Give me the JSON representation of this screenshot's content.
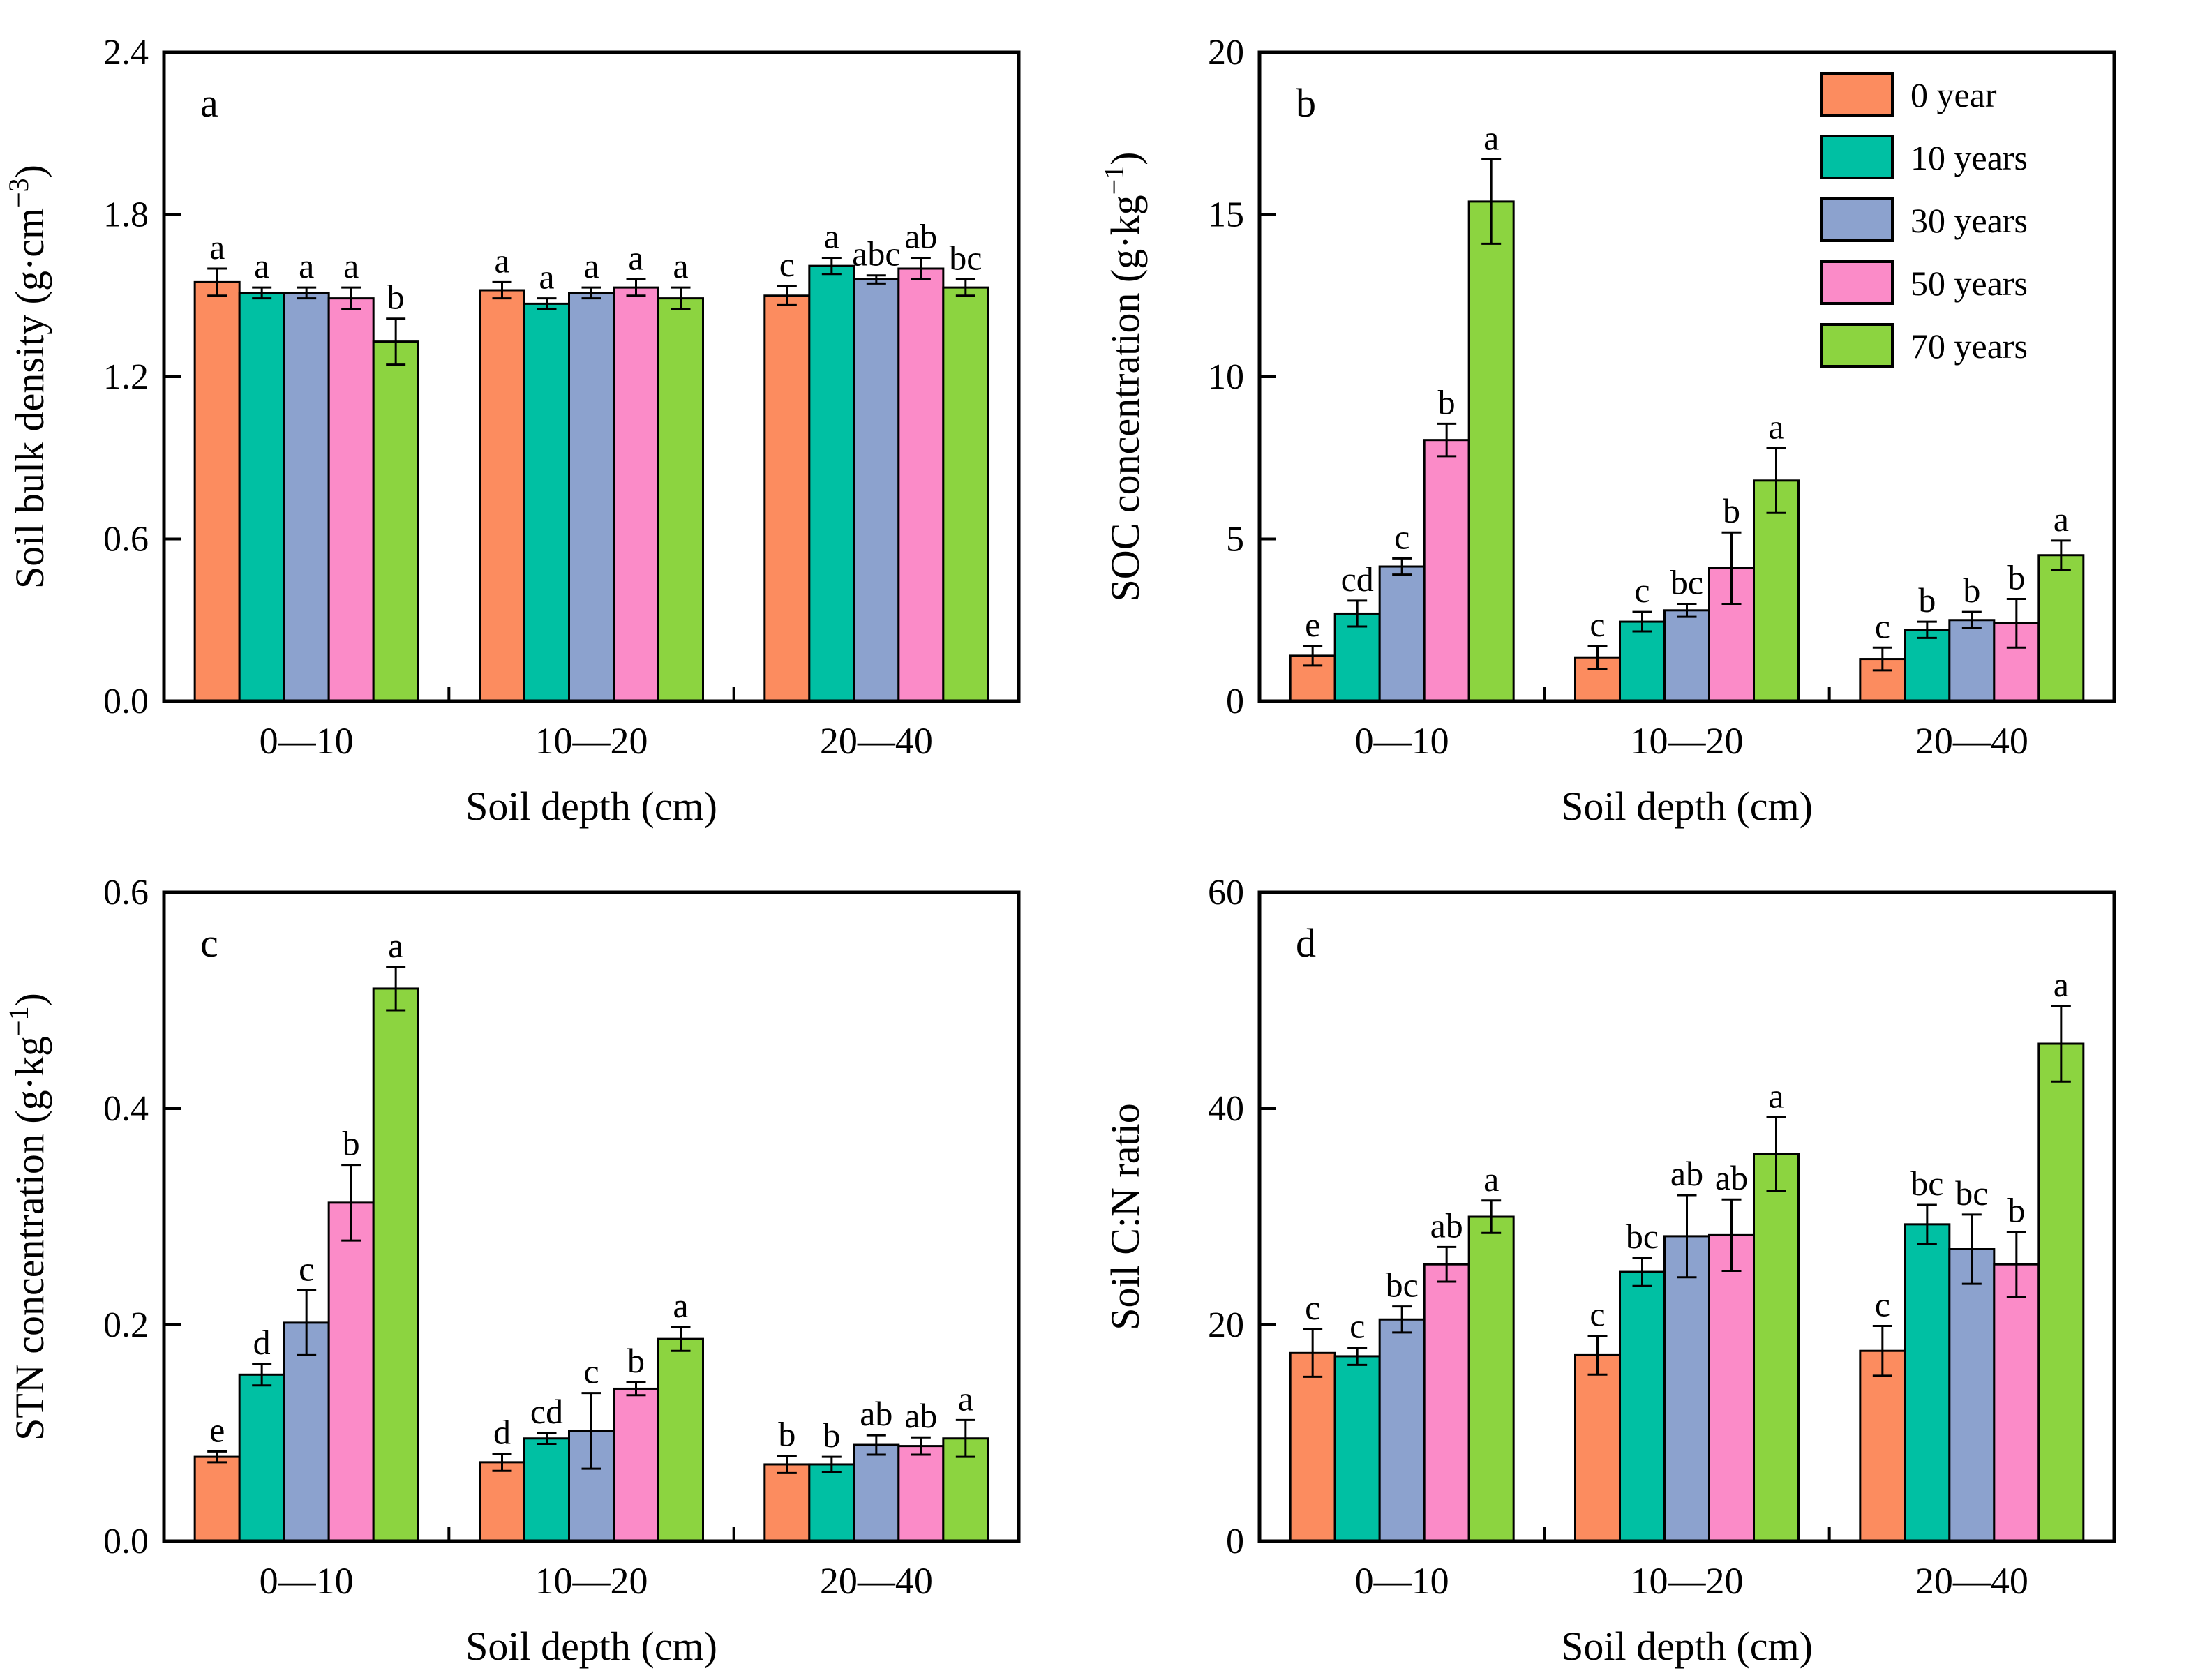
{
  "figure": {
    "background": "#ffffff",
    "frame_color": "#000000",
    "series_colors": [
      "#FC8C5F",
      "#00C0A3",
      "#8CA2CE",
      "#FB8BC8",
      "#8CD440"
    ]
  },
  "legend": {
    "position": "top-right-panel-b",
    "labels": [
      "0 year",
      "10  years",
      "30  years",
      "50  years",
      "70  years"
    ]
  },
  "chart_data": [
    {
      "id": "a",
      "type": "bar",
      "panel_letter": "a",
      "xlabel": "Soil depth (cm)",
      "ylabel_segments": [
        {
          "t": "Soil bulk density (g·cm"
        },
        {
          "t": "−3",
          "sup": true
        },
        {
          "t": ")"
        }
      ],
      "categories": [
        "0—10",
        "10—20",
        "20—40"
      ],
      "ylim": [
        0,
        2.4
      ],
      "yticks": [
        0,
        0.6,
        1.2,
        1.8,
        2.4
      ],
      "ytick_labels": [
        "0.0",
        "0.6",
        "1.2",
        "1.8",
        "2.4"
      ],
      "grid": false,
      "show_legend": false,
      "series": [
        {
          "name": "0 year",
          "values": [
            1.55,
            1.52,
            1.5
          ],
          "errors": [
            0.05,
            0.03,
            0.035
          ],
          "letters": [
            "a",
            "a",
            "c"
          ]
        },
        {
          "name": "10 years",
          "values": [
            1.51,
            1.47,
            1.61
          ],
          "errors": [
            0.02,
            0.02,
            0.03
          ],
          "letters": [
            "a",
            "a",
            "a"
          ]
        },
        {
          "name": "30 years",
          "values": [
            1.51,
            1.51,
            1.56
          ],
          "errors": [
            0.02,
            0.02,
            0.015
          ],
          "letters": [
            "a",
            "a",
            "abc"
          ]
        },
        {
          "name": "50 years",
          "values": [
            1.49,
            1.53,
            1.6
          ],
          "errors": [
            0.04,
            0.03,
            0.04
          ],
          "letters": [
            "a",
            "a",
            "ab"
          ]
        },
        {
          "name": "70 years",
          "values": [
            1.33,
            1.49,
            1.53
          ],
          "errors": [
            0.085,
            0.04,
            0.03
          ],
          "letters": [
            "b",
            "a",
            "bc"
          ]
        }
      ]
    },
    {
      "id": "b",
      "type": "bar",
      "panel_letter": "b",
      "xlabel": "Soil depth (cm)",
      "ylabel_segments": [
        {
          "t": "SOC concentration (g·kg"
        },
        {
          "t": "−1",
          "sup": true
        },
        {
          "t": ")"
        }
      ],
      "categories": [
        "0—10",
        "10—20",
        "20—40"
      ],
      "ylim": [
        0,
        20
      ],
      "yticks": [
        0,
        5,
        10,
        15,
        20
      ],
      "ytick_labels": [
        "0",
        "5",
        "10",
        "15",
        "20"
      ],
      "grid": false,
      "show_legend": true,
      "series": [
        {
          "name": "0 year",
          "values": [
            1.4,
            1.35,
            1.3
          ],
          "errors": [
            0.3,
            0.35,
            0.35
          ],
          "letters": [
            "e",
            "c",
            "c"
          ]
        },
        {
          "name": "10 years",
          "values": [
            2.7,
            2.45,
            2.2
          ],
          "errors": [
            0.4,
            0.3,
            0.25
          ],
          "letters": [
            "cd",
            "c",
            "b"
          ]
        },
        {
          "name": "30 years",
          "values": [
            4.15,
            2.8,
            2.5
          ],
          "errors": [
            0.25,
            0.2,
            0.25
          ],
          "letters": [
            "c",
            "bc",
            "b"
          ]
        },
        {
          "name": "50 years",
          "values": [
            8.05,
            4.1,
            2.4
          ],
          "errors": [
            0.5,
            1.1,
            0.75
          ],
          "letters": [
            "b",
            "b",
            "b"
          ]
        },
        {
          "name": "70 years",
          "values": [
            15.4,
            6.8,
            4.5
          ],
          "errors": [
            1.3,
            1.0,
            0.45
          ],
          "letters": [
            "a",
            "a",
            "a"
          ]
        }
      ]
    },
    {
      "id": "c",
      "type": "bar",
      "panel_letter": "c",
      "xlabel": "Soil depth (cm)",
      "ylabel_segments": [
        {
          "t": "STN concentration (g·kg"
        },
        {
          "t": "−1",
          "sup": true
        },
        {
          "t": ")"
        }
      ],
      "categories": [
        "0—10",
        "10—20",
        "20—40"
      ],
      "ylim": [
        0,
        0.6
      ],
      "yticks": [
        0,
        0.2,
        0.4,
        0.6
      ],
      "ytick_labels": [
        "0.0",
        "0.2",
        "0.4",
        "0.6"
      ],
      "grid": false,
      "show_legend": false,
      "series": [
        {
          "name": "0 year",
          "values": [
            0.078,
            0.073,
            0.071
          ],
          "errors": [
            0.005,
            0.008,
            0.008
          ],
          "letters": [
            "e",
            "d",
            "b"
          ]
        },
        {
          "name": "10 years",
          "values": [
            0.154,
            0.095,
            0.071
          ],
          "errors": [
            0.01,
            0.005,
            0.007
          ],
          "letters": [
            "d",
            "cd",
            "b"
          ]
        },
        {
          "name": "30 years",
          "values": [
            0.202,
            0.102,
            0.089
          ],
          "errors": [
            0.03,
            0.035,
            0.009
          ],
          "letters": [
            "c",
            "c",
            "ab"
          ]
        },
        {
          "name": "50 years",
          "values": [
            0.313,
            0.141,
            0.088
          ],
          "errors": [
            0.035,
            0.006,
            0.008
          ],
          "letters": [
            "b",
            "b",
            "ab"
          ]
        },
        {
          "name": "70 years",
          "values": [
            0.511,
            0.187,
            0.095
          ],
          "errors": [
            0.02,
            0.011,
            0.017
          ],
          "letters": [
            "a",
            "a",
            "a"
          ]
        }
      ]
    },
    {
      "id": "d",
      "type": "bar",
      "panel_letter": "d",
      "xlabel": "Soil depth (cm)",
      "ylabel_segments": [
        {
          "t": "Soil C:N ratio"
        }
      ],
      "categories": [
        "0—10",
        "10—20",
        "20—40"
      ],
      "ylim": [
        0,
        60
      ],
      "yticks": [
        0,
        20,
        40,
        60
      ],
      "ytick_labels": [
        "0",
        "20",
        "40",
        "60"
      ],
      "grid": false,
      "show_legend": false,
      "series": [
        {
          "name": "0 year",
          "values": [
            17.4,
            17.2,
            17.6
          ],
          "errors": [
            2.2,
            1.8,
            2.3
          ],
          "letters": [
            "c",
            "c",
            "c"
          ]
        },
        {
          "name": "10 years",
          "values": [
            17.1,
            24.9,
            29.3
          ],
          "errors": [
            0.8,
            1.3,
            1.8
          ],
          "letters": [
            "c",
            "bc",
            "bc"
          ]
        },
        {
          "name": "30 years",
          "values": [
            20.5,
            28.2,
            27.0
          ],
          "errors": [
            1.2,
            3.8,
            3.2
          ],
          "letters": [
            "bc",
            "ab",
            "bc"
          ]
        },
        {
          "name": "50 years",
          "values": [
            25.6,
            28.3,
            25.6
          ],
          "errors": [
            1.6,
            3.3,
            3.0
          ],
          "letters": [
            "ab",
            "ab",
            "b"
          ]
        },
        {
          "name": "70 years",
          "values": [
            30.0,
            35.8,
            46.0
          ],
          "errors": [
            1.5,
            3.4,
            3.5
          ],
          "letters": [
            "a",
            "a",
            "a"
          ]
        }
      ]
    }
  ]
}
